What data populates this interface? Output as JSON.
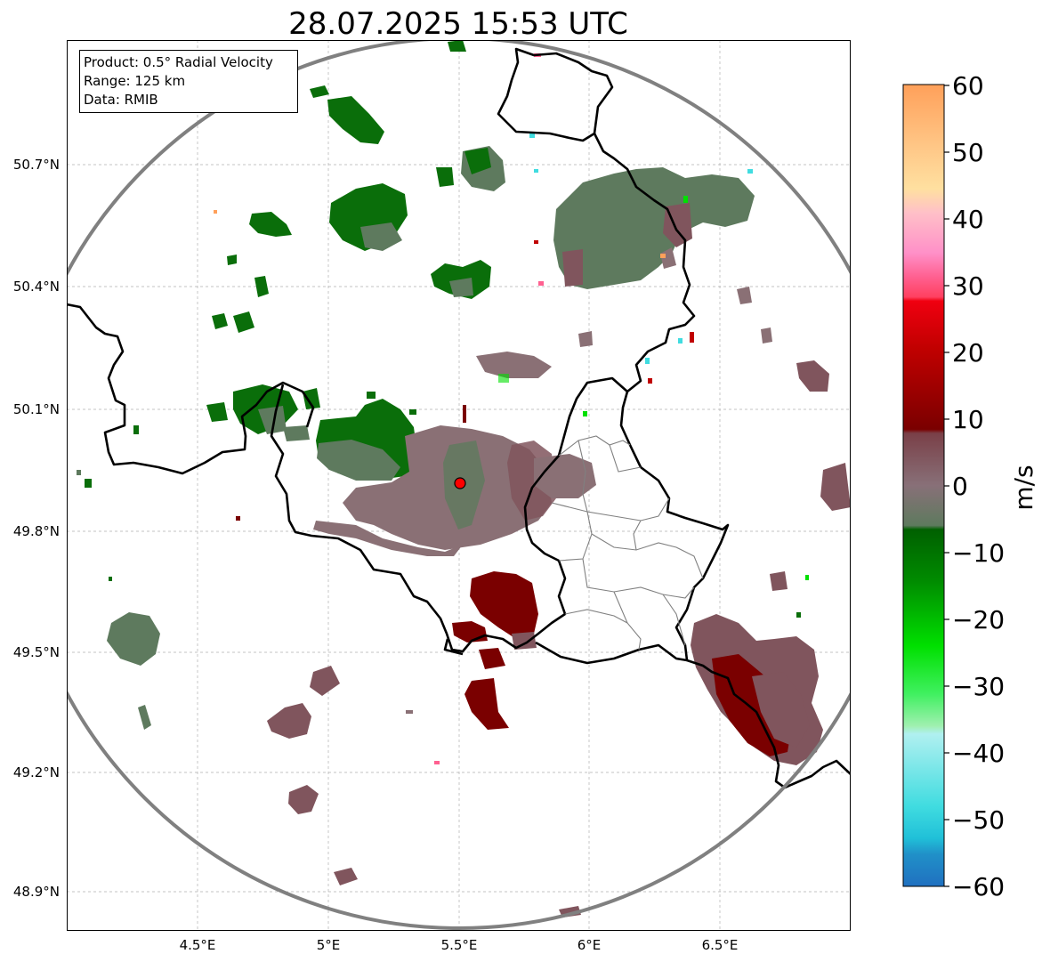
{
  "title": "28.07.2025 15:53 UTC",
  "info_box": {
    "line1": "Product: 0.5° Radial Velocity",
    "line2": "Range: 125 km",
    "line3": "Data: RMIB"
  },
  "axes": {
    "lat_labels": [
      "50.7°N",
      "50.4°N",
      "50.1°N",
      "49.8°N",
      "49.5°N",
      "49.2°N",
      "48.9°N"
    ],
    "lon_labels": [
      "4.5°E",
      "5°E",
      "5.5°E",
      "6°E",
      "6.5°E"
    ]
  },
  "colorbar": {
    "label": "m/s",
    "ticks": [
      "60",
      "50",
      "40",
      "30",
      "20",
      "10",
      "0",
      "−10",
      "−20",
      "−30",
      "−40",
      "−50",
      "−60"
    ],
    "stops": [
      "#ffa05a",
      "#ffbe80",
      "#ffe0a0",
      "#ffc0c8",
      "#ff90c8",
      "#ff6090",
      "#ff4060",
      "#f00010",
      "#c00000",
      "#800000",
      "#7a4048",
      "#887078",
      "#6a8a68",
      "#3a7a3a",
      "#006600",
      "#00a000",
      "#00e000",
      "#60f080",
      "#a0f0e0",
      "#50e0e0",
      "#20d8e0",
      "#2080c0"
    ]
  },
  "radar": {
    "site_marker": "radar-site"
  },
  "colors": {
    "dark_red": "#7a0000",
    "maroon_gray": "#80555d",
    "mauve_gray": "#8a7075",
    "gray_green": "#5e7a5e",
    "dark_green": "#0a6e0a",
    "range_ring": "#808080"
  }
}
